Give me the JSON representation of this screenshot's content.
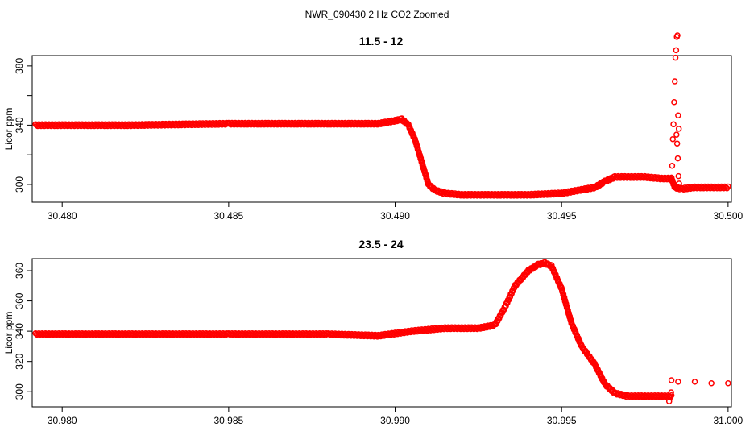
{
  "figure": {
    "title": "NWR_090430  2 Hz CO2 Zoomed"
  },
  "chart_data": [
    {
      "type": "scatter",
      "title": "11.5 - 12",
      "xlabel": "",
      "ylabel": "Licor ppm",
      "xlim": [
        30.4791,
        30.5001
      ],
      "ylim": [
        288,
        387
      ],
      "x_ticks": [
        "30.480",
        "30.485",
        "30.490",
        "30.495",
        "30.500"
      ],
      "y_ticks": [
        "300",
        "340",
        "380"
      ],
      "marker": "open-circle",
      "color": "#ff0000",
      "grid": false,
      "series": [
        {
          "x": [
            30.4792,
            30.48,
            30.482,
            30.485,
            30.487,
            30.4885,
            30.4895,
            30.49,
            30.4902,
            30.4904,
            30.4906,
            30.4908,
            30.491,
            30.4912,
            30.4915,
            30.492,
            30.493,
            30.494,
            30.495,
            30.4955,
            30.496,
            30.4963,
            30.4966,
            30.497,
            30.4975,
            30.498,
            30.4983,
            30.4984,
            30.4986,
            30.499,
            30.4995,
            30.5
          ],
          "y": [
            340,
            340,
            340,
            341,
            341,
            341,
            341,
            343,
            344,
            340,
            330,
            315,
            300,
            296,
            294,
            293,
            293,
            293,
            294,
            296,
            298,
            302,
            305,
            305,
            305,
            304,
            304,
            298,
            297,
            298,
            298,
            298
          ]
        },
        {
          "x": [
            30.4983,
            30.49832,
            30.49834,
            30.49836,
            30.49838,
            30.4984,
            30.49842,
            30.49844,
            30.49846,
            30.49848,
            30.4985,
            30.49852
          ],
          "y": [
            304,
            312,
            330,
            340,
            355,
            369,
            385,
            390,
            399,
            400,
            346,
            337
          ]
        },
        {
          "x": [
            30.49845,
            30.49847,
            30.49849,
            30.49851,
            30.49853
          ],
          "y": [
            333,
            327,
            317,
            305,
            300
          ]
        }
      ]
    },
    {
      "type": "scatter",
      "title": "23.5 - 24",
      "xlabel": "",
      "ylabel": "Licor ppm",
      "xlim": [
        30.9791,
        31.0001
      ],
      "ylim": [
        290,
        388
      ],
      "x_ticks": [
        "30.980",
        "30.985",
        "30.990",
        "30.995",
        "31.000"
      ],
      "y_ticks": [
        "300",
        "320",
        "340",
        "360",
        "360"
      ],
      "marker": "open-circle",
      "color": "#ff0000",
      "grid": false,
      "series": [
        {
          "x": [
            30.9792,
            30.98,
            30.982,
            30.985,
            30.988,
            30.9895,
            30.9905,
            30.9915,
            30.9925,
            30.993,
            30.9933,
            30.9936,
            30.994,
            30.9943,
            30.9945,
            30.9947,
            30.995,
            30.9953,
            30.9956,
            30.996,
            30.9963,
            30.9966,
            30.997,
            30.9975,
            30.998,
            30.9983
          ],
          "y": [
            338,
            338,
            338,
            338,
            338,
            337,
            340,
            342,
            342,
            344,
            356,
            370,
            380,
            384,
            385,
            383,
            368,
            345,
            330,
            318,
            305,
            299,
            297,
            297,
            297,
            297
          ]
        },
        {
          "x": [
            30.9983,
            30.9985,
            30.999,
            30.9995,
            31.0
          ],
          "y": [
            307,
            306,
            306,
            305,
            305
          ]
        },
        {
          "x": [
            30.99823,
            30.99826,
            30.99829
          ],
          "y": [
            293,
            296,
            299
          ]
        }
      ]
    }
  ]
}
